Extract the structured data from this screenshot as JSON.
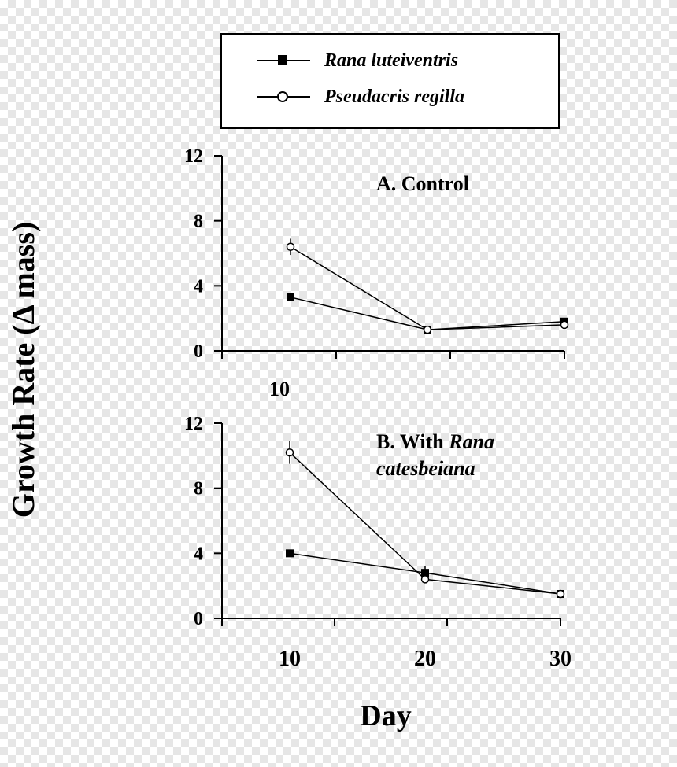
{
  "legend": {
    "entries": [
      {
        "label": "Rana luteiventris",
        "marker": "filled-square"
      },
      {
        "label": "Pseudacris regilla",
        "marker": "open-circle"
      }
    ]
  },
  "axis_labels": {
    "y": "Growth Rate (Δ mass)",
    "x": "Day"
  },
  "stray_label": "10",
  "chart_data": [
    {
      "type": "line",
      "title": "A. Control",
      "x": [
        10,
        20,
        30
      ],
      "xlim": [
        5,
        30
      ],
      "ylim": [
        0,
        12
      ],
      "yticks": [
        "0",
        "4",
        "8",
        "12"
      ],
      "xtick_labels": [],
      "series": [
        {
          "name": "Rana luteiventris",
          "marker": "filled-square",
          "values": [
            3.3,
            1.3,
            1.8
          ],
          "errors": [
            0.2,
            0.1,
            0.1
          ]
        },
        {
          "name": "Pseudacris regilla",
          "marker": "open-circle",
          "values": [
            6.4,
            1.3,
            1.6
          ],
          "errors": [
            0.5,
            0.1,
            0.1
          ]
        }
      ]
    },
    {
      "type": "line",
      "title": "B. With Rana catesbeiana",
      "title_parts": [
        "B. With ",
        "Rana",
        "catesbeiana"
      ],
      "x": [
        10,
        20,
        30
      ],
      "xlim": [
        5,
        30
      ],
      "ylim": [
        0,
        12
      ],
      "yticks": [
        "0",
        "4",
        "8",
        "12"
      ],
      "xtick_labels": [
        "10",
        "20",
        "30"
      ],
      "series": [
        {
          "name": "Rana luteiventris",
          "marker": "filled-square",
          "values": [
            4.0,
            2.8,
            1.5
          ],
          "errors": [
            0.2,
            0.4,
            0.1
          ]
        },
        {
          "name": "Pseudacris regilla",
          "marker": "open-circle",
          "values": [
            10.2,
            2.4,
            1.5
          ],
          "errors": [
            0.7,
            0.2,
            0.1
          ]
        }
      ]
    }
  ]
}
